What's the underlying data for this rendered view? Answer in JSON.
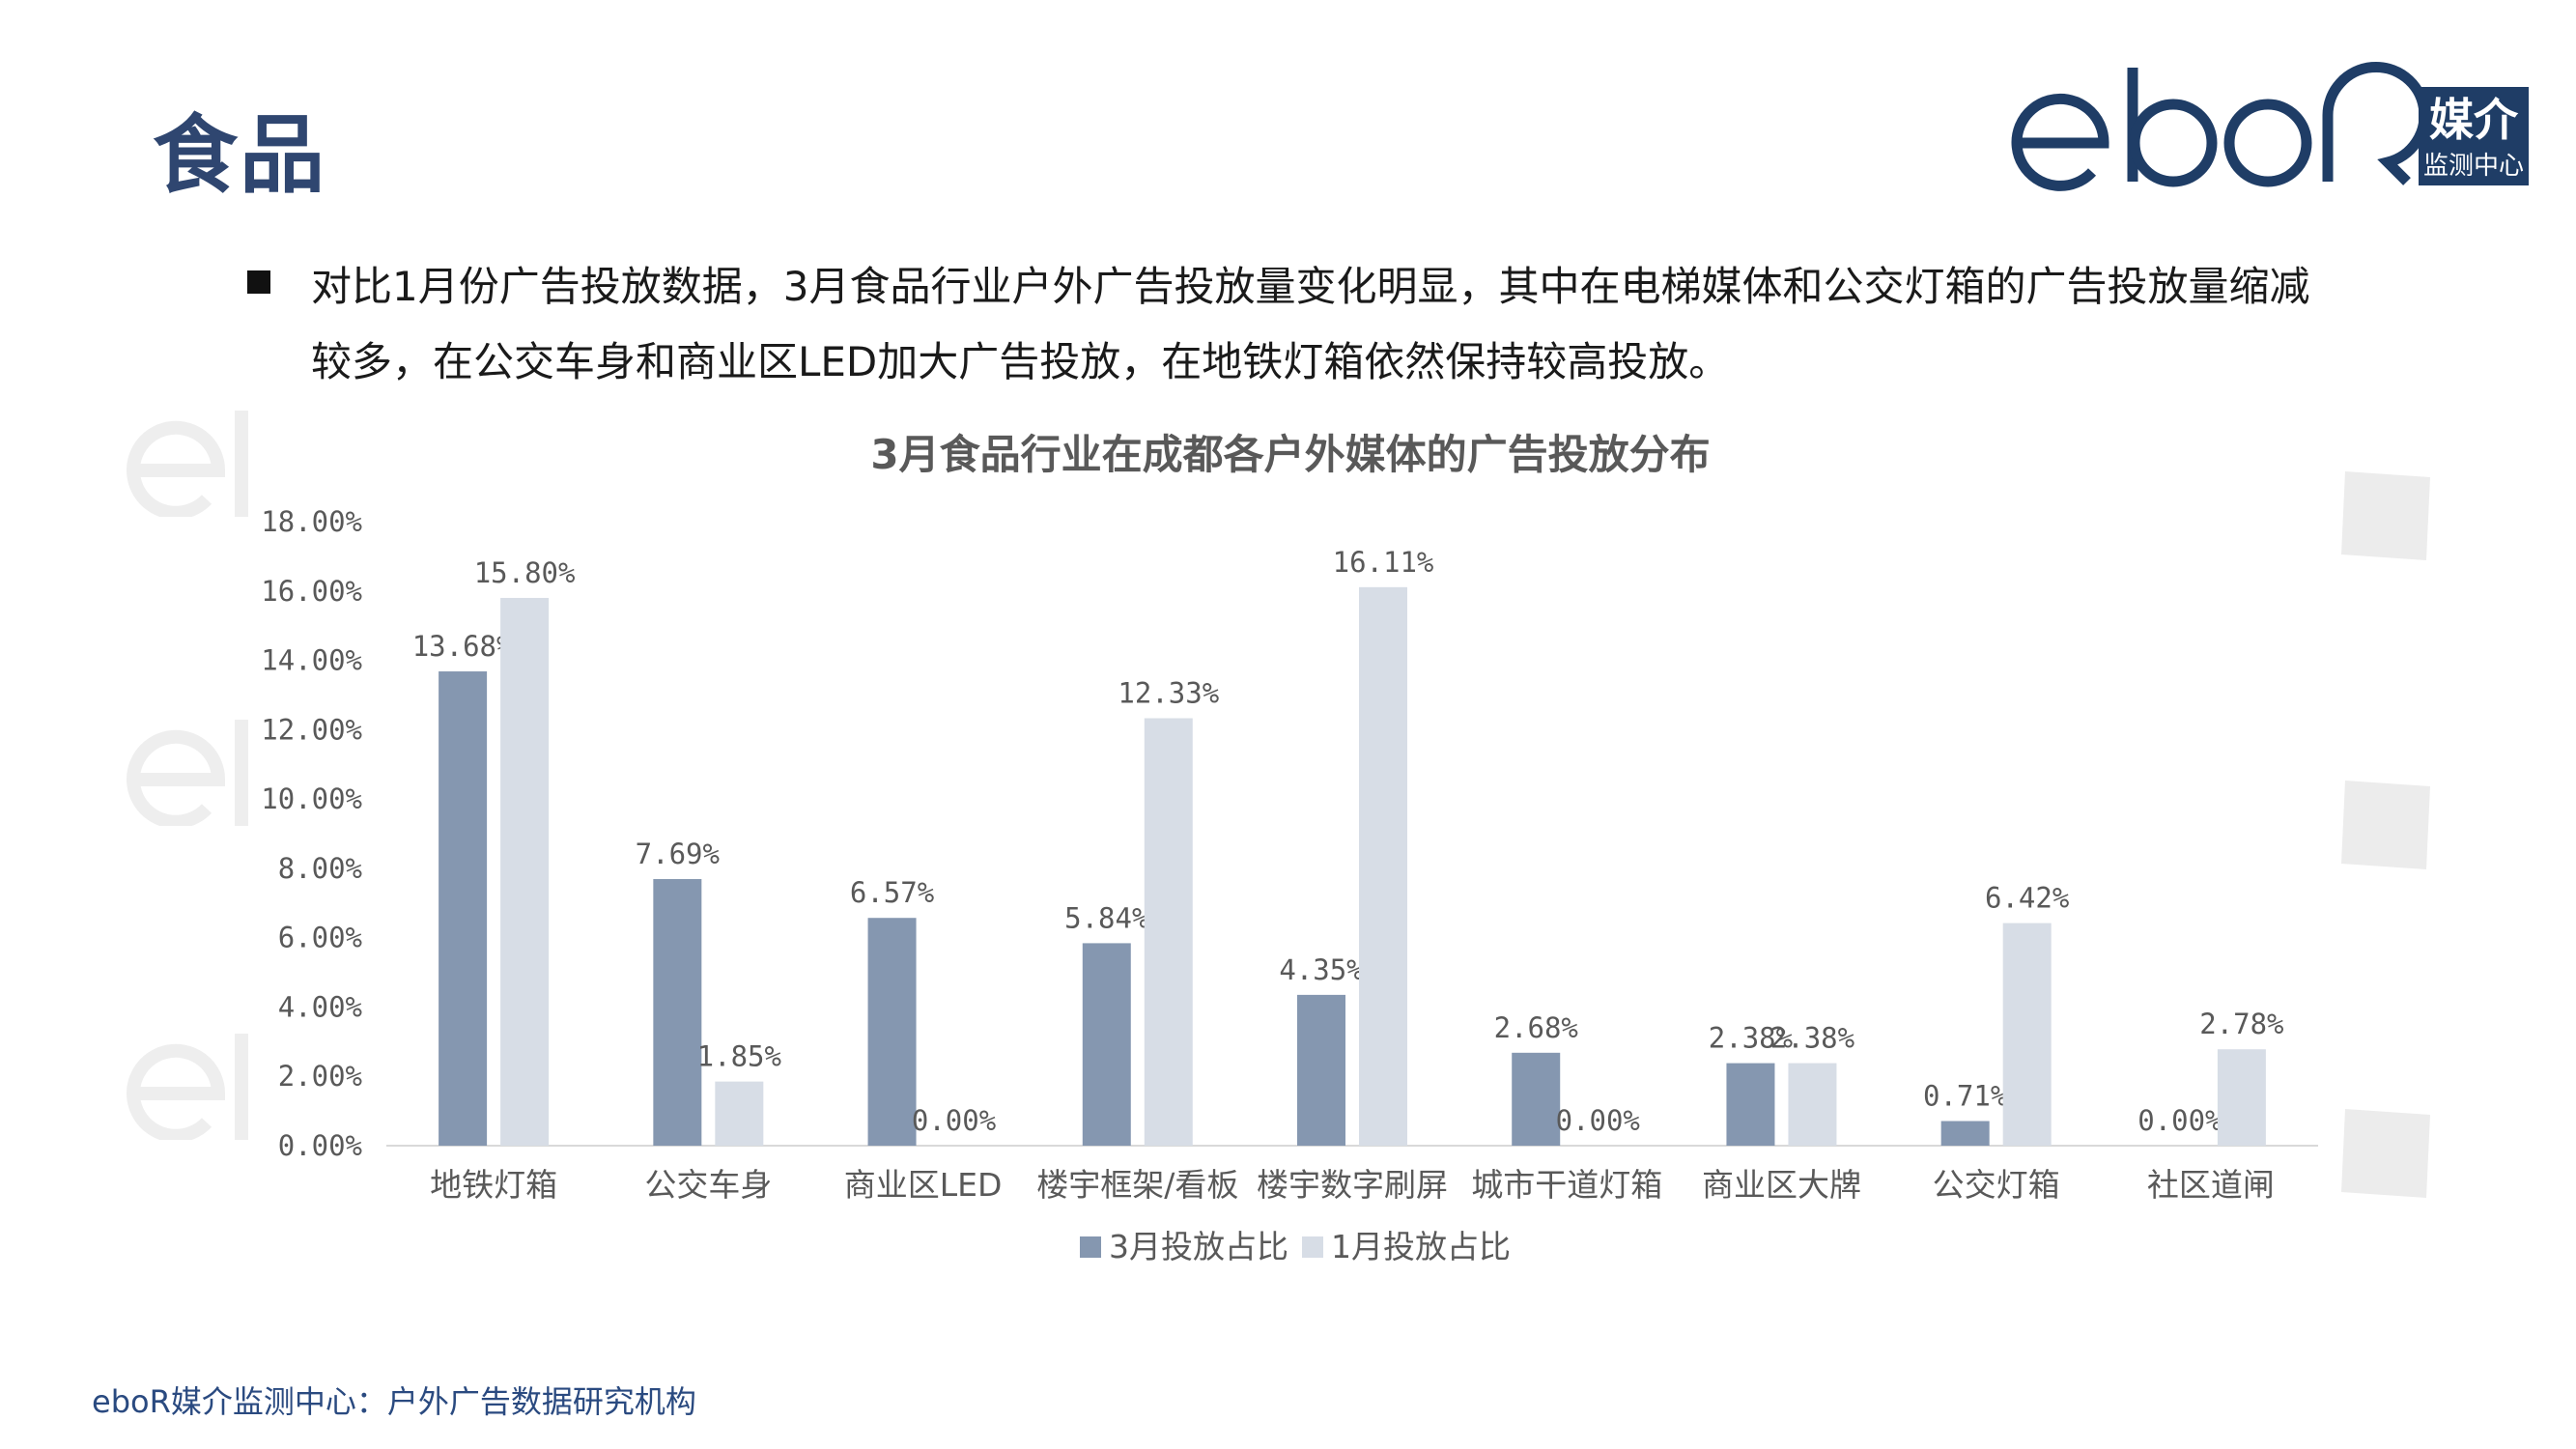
{
  "page": {
    "title": "食品",
    "bullet": "对比1月份广告投放数据，3月食品行业户外广告投放量变化明显，其中在电梯媒体和公交灯箱的广告投放量缩减较多，在公交车身和商业区LED加大广告投放，在地铁灯箱依然保持较高投放。",
    "footer": "eboR媒介监测中心：户外广告数据研究机构"
  },
  "logo": {
    "wordmark": "eboR",
    "cn_top": "媒介",
    "cn_bottom": "监测中心",
    "color": "#1f3d66"
  },
  "colors": {
    "series_march": "#8597b0",
    "series_jan": "#d7dde6",
    "title": "#2f4670",
    "axis_text": "#595959",
    "watermark": "#eeeeee",
    "deco": "#ececec"
  },
  "chart_data": {
    "type": "bar",
    "title": "3月食品行业在成都各户外媒体的广告投放分布",
    "categories": [
      "地铁灯箱",
      "公交车身",
      "商业区LED",
      "楼宇框架/看板",
      "楼宇数字刷屏",
      "城市干道灯箱",
      "商业区大牌",
      "公交灯箱",
      "社区道闸"
    ],
    "series": [
      {
        "name": "3月投放占比",
        "values": [
          13.68,
          7.69,
          6.57,
          5.84,
          4.35,
          2.68,
          2.38,
          0.71,
          0.0
        ]
      },
      {
        "name": "1月投放占比",
        "values": [
          15.8,
          1.85,
          0.0,
          12.33,
          16.11,
          0.0,
          2.38,
          6.42,
          2.78
        ]
      }
    ],
    "value_labels": [
      [
        "13.68%",
        "7.69%",
        "6.57%",
        "5.84%",
        "4.35%",
        "2.68%",
        "2.38%",
        "0.71%",
        "0.00%"
      ],
      [
        "15.80%",
        "1.85%",
        "0.00%",
        "12.33%",
        "16.11%",
        "0.00%",
        "2.38%",
        "6.42%",
        "2.78%"
      ]
    ],
    "y_ticks": [
      "0.00%",
      "2.00%",
      "4.00%",
      "6.00%",
      "8.00%",
      "10.00%",
      "12.00%",
      "14.00%",
      "16.00%",
      "18.00%"
    ],
    "ylim": [
      0,
      18
    ],
    "legend_position": "bottom",
    "grid": false
  }
}
